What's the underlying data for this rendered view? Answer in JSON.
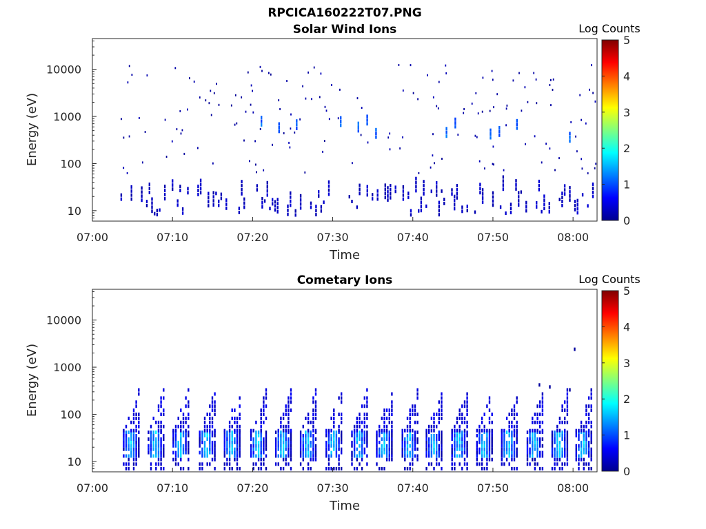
{
  "figure": {
    "title": "RPCICA160222T07.PNG"
  },
  "chart_data": [
    {
      "type": "heatmap",
      "title": "Solar Wind Ions",
      "xlabel": "Time",
      "ylabel": "Energy (eV)",
      "x_ticks": [
        "07:00",
        "07:10",
        "07:20",
        "07:30",
        "07:40",
        "07:50",
        "08:00"
      ],
      "x_range_minutes": [
        0,
        63
      ],
      "y_ticks": [
        "10",
        "100",
        "1000",
        "10000"
      ],
      "y_scale": "log",
      "ylim": [
        6,
        45000
      ],
      "colorbar": {
        "label": "Log Counts",
        "ticks": [
          "0",
          "1",
          "2",
          "3",
          "4",
          "5"
        ],
        "range": [
          0,
          5
        ],
        "colormap": "jet"
      },
      "features": [
        {
          "band": "low-energy",
          "energy_range_ev": [
            8,
            30
          ],
          "time_range_minutes": [
            3.5,
            62.5
          ],
          "log_counts": 0.2,
          "pattern": "sparse vertical streaks"
        },
        {
          "band": "mid-energy",
          "energy_range_ev": [
            300,
            700
          ],
          "time_range_minutes": [
            21,
            60
          ],
          "log_counts": 0.9,
          "pattern": "occasional brighter streaks"
        },
        {
          "band": "scattered",
          "energy_range_ev": [
            60,
            13000
          ],
          "time_range_minutes": [
            2.5,
            63
          ],
          "log_counts": 0.1,
          "pattern": "isolated single pixels"
        }
      ]
    },
    {
      "type": "heatmap",
      "title": "Cometary Ions",
      "xlabel": "Time",
      "ylabel": "Energy (eV)",
      "x_ticks": [
        "07:00",
        "07:10",
        "07:20",
        "07:30",
        "07:40",
        "07:50",
        "08:00"
      ],
      "x_range_minutes": [
        0,
        63
      ],
      "y_ticks": [
        "10",
        "100",
        "1000",
        "10000"
      ],
      "y_scale": "log",
      "ylim": [
        6,
        45000
      ],
      "colorbar": {
        "label": "Log Counts",
        "ticks": [
          "0",
          "1",
          "2",
          "3",
          "4",
          "5"
        ],
        "range": [
          0,
          5
        ],
        "colormap": "jet"
      },
      "bursts_start_minutes": [
        3.8,
        6.9,
        10.0,
        13.3,
        16.4,
        19.7,
        22.8,
        25.9,
        29.1,
        32.3,
        35.4,
        38.6,
        41.6,
        44.8,
        47.9,
        51.0,
        54.2,
        57.3,
        60.3
      ],
      "burst_profile": {
        "duration_minutes": 2.2,
        "core_energy_ev": [
          13,
          45
        ],
        "core_log_counts": 1.7,
        "upper_energy_ev": [
          45,
          500
        ],
        "upper_log_counts": 0.3
      }
    }
  ]
}
